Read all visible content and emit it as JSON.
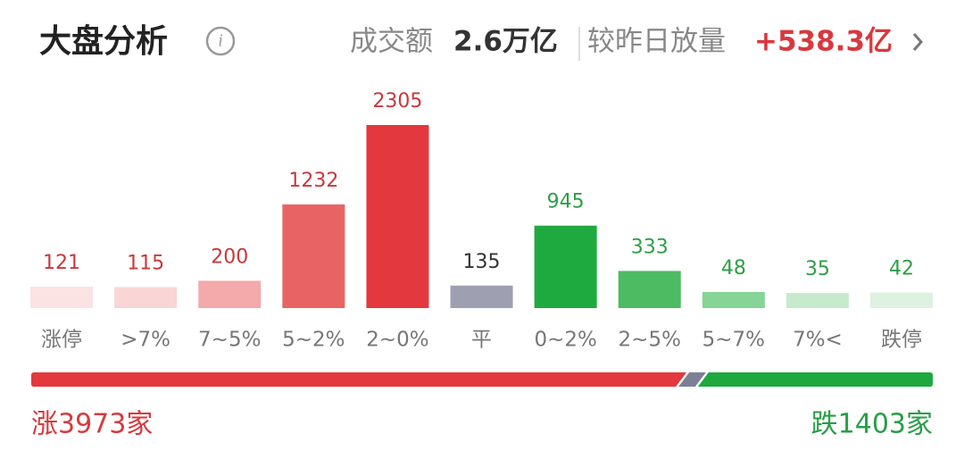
{
  "header": {
    "title": "大盘分析",
    "turnover_label": "成交额",
    "turnover": "2.6万亿",
    "change_label": "较昨日放量",
    "change": "+538.3亿"
  },
  "chart_data": {
    "type": "bar",
    "categories": [
      "涨停",
      ">7%",
      "7~5%",
      "5~2%",
      "2~0%",
      "平",
      "0~2%",
      "2~5%",
      "5~7%",
      "7%<",
      "跌停"
    ],
    "values": [
      121,
      115,
      200,
      1232,
      2305,
      135,
      945,
      333,
      48,
      35,
      42
    ],
    "colors": [
      "#fbe3e4",
      "#f9d5d6",
      "#f4a9ab",
      "#e86464",
      "#e3383d",
      "#9ea0b1",
      "#1eaa3e",
      "#4dbb62",
      "#86d496",
      "#c5ebcc",
      "#ddf2e0"
    ],
    "label_colors": [
      "#c8383c",
      "#c8383c",
      "#c8383c",
      "#c8383c",
      "#c8383c",
      "#333333",
      "#2e9e48",
      "#2e9e48",
      "#2e9e48",
      "#2e9e48",
      "#2e9e48"
    ]
  },
  "breadth": {
    "up": 3973,
    "up_label": "涨3973家",
    "down": 1403,
    "down_label": "跌1403家",
    "up_color": "#e3383d",
    "flat_color": "#7d8094",
    "down_color": "#1fa83f"
  }
}
